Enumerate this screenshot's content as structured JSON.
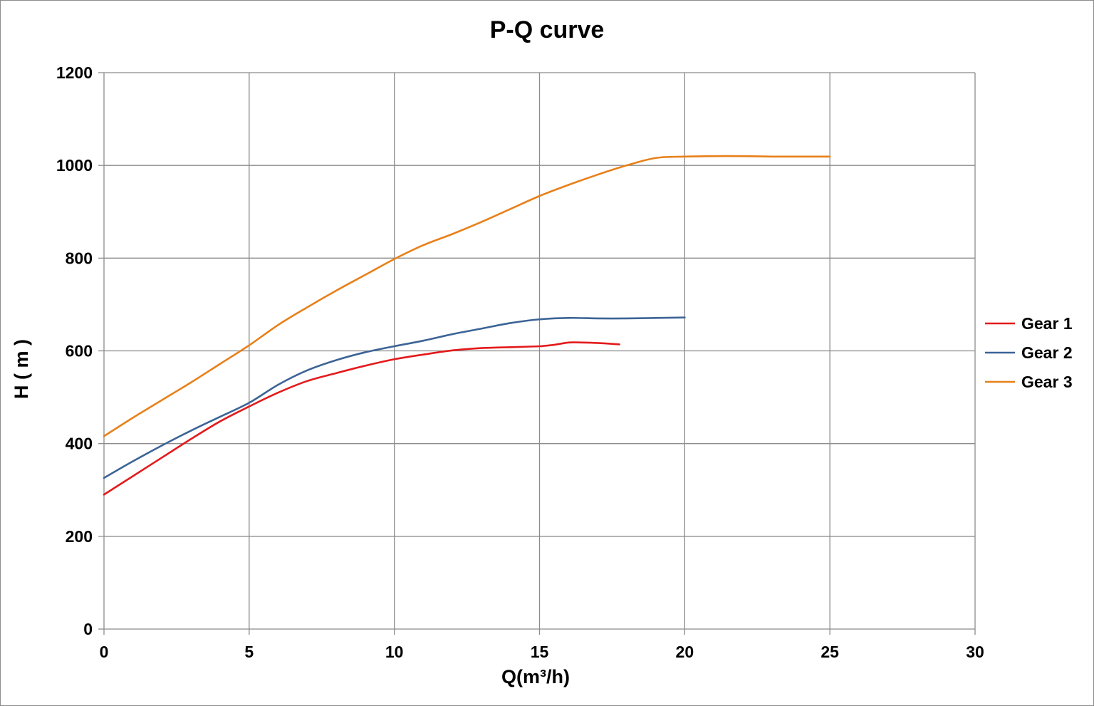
{
  "chart_data": {
    "type": "line",
    "title": "P-Q  curve",
    "xlabel": "Q(m³/h)",
    "ylabel": "H ( m )",
    "xlim": [
      0,
      30
    ],
    "ylim": [
      0,
      1200
    ],
    "x_ticks": [
      0,
      5,
      10,
      15,
      20,
      25,
      30
    ],
    "y_ticks": [
      0,
      200,
      400,
      600,
      800,
      1000,
      1200
    ],
    "x_tick_labels": [
      "0",
      "5",
      "10",
      "15",
      "20",
      "25",
      "30"
    ],
    "y_tick_labels": [
      "0",
      "200",
      "400",
      "600",
      "800",
      "1000",
      "1200"
    ],
    "grid": true,
    "legend_position": "right",
    "series": [
      {
        "name": "Gear 1",
        "color": "#e31a1c",
        "x": [
          0,
          1,
          2,
          3,
          4,
          5,
          6,
          7,
          8,
          9,
          10,
          11,
          12,
          13,
          14,
          15,
          15.5,
          16,
          16.5,
          17,
          17.75
        ],
        "y": [
          290,
          330,
          370,
          410,
          448,
          480,
          510,
          535,
          552,
          568,
          582,
          592,
          601,
          606,
          608,
          610,
          613,
          618,
          618,
          617,
          614
        ]
      },
      {
        "name": "Gear 2",
        "color": "#3c6496",
        "x": [
          0,
          1,
          2,
          3,
          4,
          5,
          6,
          7,
          8,
          9,
          10,
          11,
          12,
          13,
          14,
          15,
          16,
          17,
          18,
          19,
          20
        ],
        "y": [
          326,
          362,
          396,
          428,
          458,
          488,
          527,
          558,
          580,
          597,
          610,
          622,
          636,
          648,
          660,
          668,
          671,
          670,
          670,
          671,
          672
        ]
      },
      {
        "name": "Gear 3",
        "color": "#e8801a",
        "x": [
          0,
          1,
          2,
          3,
          4,
          5,
          6,
          7,
          8,
          9,
          10,
          11,
          12,
          13,
          14,
          15,
          16,
          17,
          18,
          19,
          20,
          21,
          22,
          23,
          24,
          25
        ],
        "y": [
          416,
          456,
          494,
          532,
          572,
          612,
          656,
          694,
          730,
          764,
          798,
          828,
          852,
          878,
          906,
          934,
          958,
          980,
          1000,
          1016,
          1019,
          1020,
          1020,
          1019,
          1019,
          1019
        ]
      }
    ]
  }
}
